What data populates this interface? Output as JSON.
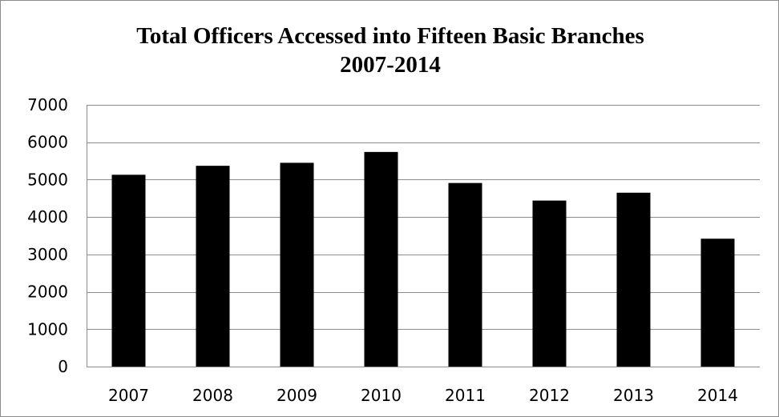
{
  "chart_data": {
    "type": "bar",
    "title": "Total Officers Accessed into Fifteen Basic Branches",
    "subtitle": "2007-2014",
    "categories": [
      "2007",
      "2008",
      "2009",
      "2010",
      "2011",
      "2012",
      "2013",
      "2014"
    ],
    "values": [
      5130,
      5370,
      5450,
      5740,
      4910,
      4440,
      4650,
      3420
    ],
    "xlabel": "",
    "ylabel": "",
    "ylim": [
      0,
      7000
    ],
    "yticks": [
      0,
      1000,
      2000,
      3000,
      4000,
      5000,
      6000,
      7000
    ],
    "grid": true,
    "legend": "none",
    "bar_color": "#000000",
    "grid_color": "#8c8c8c"
  }
}
